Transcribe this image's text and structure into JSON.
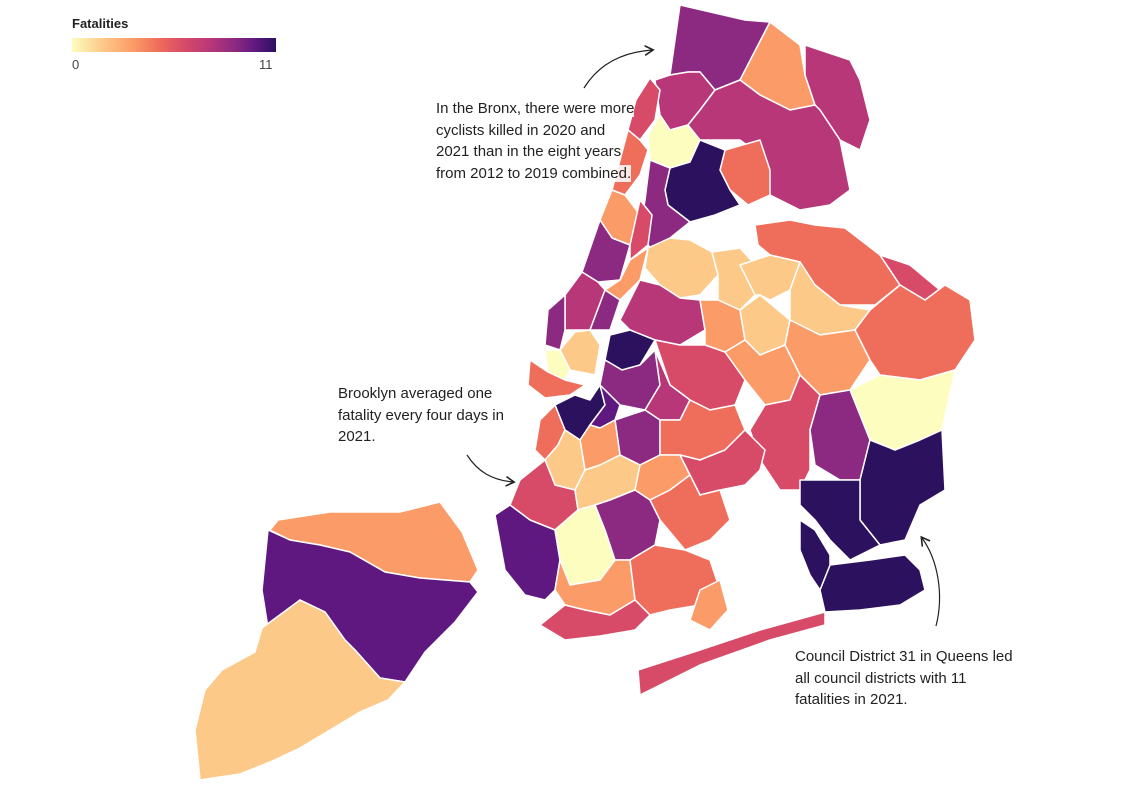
{
  "legend": {
    "title": "Fatalities",
    "min": "0",
    "max": "11",
    "colors": [
      "#fcfdbf",
      "#fdc989",
      "#fb9b67",
      "#ef6e5b",
      "#d74a68",
      "#b73779",
      "#8c2981",
      "#5f187f",
      "#2c115f"
    ]
  },
  "annotations": {
    "bronx": [
      "In the Bronx, there were more",
      "cyclists killed in 2020 and",
      "2021 than in the eight years",
      "from 2012 to 2019 combined."
    ],
    "brooklyn": [
      "Brooklyn averaged one",
      "fatality every four days in",
      "2021."
    ],
    "queens": [
      "Council District 31 in Queens led",
      "all council districts with 11",
      "fatalities in 2021."
    ]
  },
  "colors": {
    "land_border": "#ffffff",
    "arrow": "#222222"
  }
}
